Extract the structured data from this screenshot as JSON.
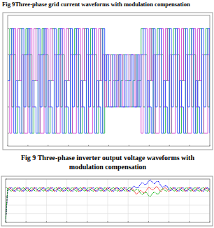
{
  "captions": [
    "Fig 9Three-phase grid current waveforms with modulation compensation",
    "Fig 9 Three-phase inverter output voltage waveforms with modulation compensation"
  ],
  "chart_data": [
    {
      "type": "step",
      "x": [
        0,
        0.01,
        0.02,
        0.03,
        0.04,
        0.05,
        0.06,
        0.07,
        0.08,
        0.09,
        0.1,
        0.11,
        0.12,
        0.13,
        0.14,
        0.15,
        0.16,
        0.17,
        0.18,
        0.19,
        0.2,
        0.21,
        0.22,
        0.23,
        0.24,
        0.25,
        0.26,
        0.27,
        0.28,
        0.29,
        0.3,
        0.31,
        0.32,
        0.33,
        0.34,
        0.35,
        0.36,
        0.37,
        0.38,
        0.39,
        0.4,
        0.41,
        0.42,
        0.43,
        0.44,
        0.45,
        0.46,
        0.47,
        0.48,
        0.49,
        0.5,
        0.51,
        0.52,
        0.53,
        0.54,
        0.55,
        0.56,
        0.57,
        0.58,
        0.59,
        0.6,
        0.61,
        0.62,
        0.63,
        0.64,
        0.65,
        0.66,
        0.67,
        0.68,
        0.69,
        0.7,
        0.71,
        0.72,
        0.73,
        0.74,
        0.75,
        0.76,
        0.77,
        0.78,
        0.79,
        0.8,
        0.81,
        0.82,
        0.83,
        0.84,
        0.85,
        0.86,
        0.87,
        0.88,
        0.89,
        0.9,
        0.91,
        0.92,
        0.93,
        0.94,
        0.95,
        0.96,
        0.97,
        0.98,
        0.99,
        1
      ],
      "series": [
        {
          "color": "#22b14c",
          "values": [
            0,
            2,
            -1,
            1,
            -2,
            0,
            2,
            -2,
            1,
            2,
            -1,
            1,
            -2,
            0,
            2,
            -2,
            1,
            2,
            -1,
            1,
            -2,
            0,
            2,
            -2,
            1,
            2,
            -1,
            1,
            -2,
            0,
            2,
            -2,
            1,
            2,
            -1,
            1,
            -2,
            0,
            2,
            -2,
            1,
            2,
            -1,
            1,
            -2,
            0,
            2,
            -2,
            1,
            -1,
            0,
            1,
            -1,
            0,
            1,
            -1,
            0,
            1,
            -1,
            0,
            1,
            -1,
            0,
            1,
            -1,
            0,
            2,
            -1,
            1,
            -2,
            0,
            2,
            -2,
            1,
            2,
            -1,
            1,
            -2,
            0,
            2,
            -2,
            1,
            2,
            -1,
            1,
            -2,
            0,
            2,
            -2,
            1,
            2,
            -1,
            1,
            -2,
            0,
            2,
            -2,
            1,
            2,
            -1,
            1
          ]
        },
        {
          "color": "#d040d0",
          "values": [
            0,
            -2,
            1,
            2,
            -1,
            2,
            0,
            1,
            -2,
            -2,
            1,
            2,
            -1,
            2,
            0,
            1,
            -2,
            -2,
            1,
            2,
            -1,
            2,
            0,
            1,
            -2,
            -2,
            1,
            2,
            -1,
            2,
            0,
            1,
            -2,
            -2,
            1,
            2,
            -1,
            2,
            0,
            1,
            -2,
            -2,
            1,
            2,
            -1,
            2,
            0,
            1,
            -1,
            1,
            1,
            -1,
            0,
            1,
            -1,
            1,
            1,
            -1,
            0,
            1,
            -1,
            1,
            1,
            -1,
            0,
            1,
            -2,
            1,
            2,
            -1,
            2,
            0,
            1,
            -2,
            -2,
            1,
            2,
            -1,
            2,
            0,
            1,
            -2,
            -2,
            1,
            2,
            -1,
            2,
            0,
            1,
            -2,
            -2,
            1,
            2,
            -1,
            2,
            0,
            1,
            -2,
            -2,
            1,
            2
          ]
        },
        {
          "color": "#3050ff",
          "values": [
            0,
            1,
            2,
            -2,
            0,
            -1,
            -2,
            2,
            -1,
            1,
            2,
            -2,
            0,
            -1,
            -2,
            2,
            -1,
            1,
            2,
            -2,
            0,
            -1,
            -2,
            2,
            -1,
            1,
            2,
            -2,
            0,
            -1,
            -2,
            2,
            -1,
            1,
            2,
            -2,
            0,
            -1,
            -2,
            2,
            -1,
            1,
            2,
            -2,
            0,
            -1,
            -2,
            2,
            0,
            1,
            -1,
            -1,
            1,
            -1,
            0,
            1,
            -1,
            -1,
            1,
            -1,
            0,
            1,
            -1,
            -1,
            1,
            -1,
            1,
            2,
            -2,
            0,
            -1,
            -2,
            2,
            -1,
            1,
            2,
            -2,
            0,
            -1,
            -2,
            2,
            -1,
            1,
            2,
            -2,
            0,
            -1,
            -2,
            2,
            -1,
            1,
            2,
            -2,
            0,
            -1,
            -2,
            2,
            -1,
            1,
            2,
            -2
          ]
        }
      ],
      "xlim": [
        0,
        1
      ],
      "xticks": [
        0,
        0.1,
        0.2,
        0.3,
        0.4,
        0.5,
        0.6,
        0.7,
        0.8,
        0.9,
        1
      ],
      "ylim": [
        -2.5,
        2.5
      ],
      "yticks": [
        -2,
        -1,
        0,
        1,
        2
      ],
      "grid": false,
      "tick_labels": false
    },
    {
      "type": "line",
      "x": [
        0,
        0.01,
        0.02,
        0.03,
        0.04,
        0.05,
        0.06,
        0.07,
        0.08,
        0.09,
        0.1,
        0.11,
        0.12,
        0.13,
        0.14,
        0.15,
        0.16,
        0.17,
        0.18,
        0.19,
        0.2,
        0.21,
        0.22,
        0.23,
        0.24,
        0.25,
        0.26,
        0.27,
        0.28,
        0.29,
        0.3,
        0.31,
        0.32,
        0.33,
        0.34,
        0.35,
        0.36,
        0.37,
        0.38,
        0.39,
        0.4,
        0.41,
        0.42,
        0.43,
        0.44,
        0.45,
        0.46,
        0.47,
        0.48,
        0.49,
        0.5,
        0.51,
        0.52,
        0.53,
        0.54,
        0.55,
        0.56,
        0.57,
        0.58,
        0.59,
        0.6,
        0.61,
        0.62,
        0.63,
        0.64,
        0.65,
        0.66,
        0.67,
        0.68,
        0.69,
        0.7,
        0.71,
        0.72,
        0.73,
        0.74,
        0.75,
        0.76,
        0.77,
        0.78,
        0.79,
        0.8,
        0.81,
        0.82,
        0.83,
        0.84,
        0.85,
        0.86,
        0.87,
        0.88,
        0.89,
        0.9,
        0.91,
        0.92,
        0.93,
        0.94,
        0.95,
        0.96,
        0.97,
        0.98,
        0.99,
        1
      ],
      "series": [
        {
          "color": "#ff0000",
          "values": [
            0,
            7.6,
            8.1,
            7.6,
            7.1,
            7.6,
            8.1,
            7.6,
            7.1,
            7.6,
            8.1,
            7.6,
            7.1,
            7.6,
            8.1,
            7.6,
            7.1,
            7.6,
            8.1,
            7.6,
            7.1,
            7.6,
            8.1,
            7.6,
            7.1,
            7.6,
            8.1,
            7.6,
            7.1,
            7.6,
            8.1,
            7.6,
            7.1,
            7.6,
            8.1,
            7.6,
            7.1,
            7.6,
            8.1,
            7.6,
            7.1,
            7.6,
            8.1,
            7.6,
            7.1,
            7.6,
            8.1,
            7.6,
            7.1,
            7.6,
            8.1,
            7.6,
            7.1,
            7.6,
            8.1,
            7.6,
            7.1,
            7.6,
            8.1,
            7.6,
            7.1,
            7.6,
            7.9,
            7.2,
            6.5,
            6.9,
            7.4,
            7.0,
            6.7,
            7.4,
            8.1,
            7.8,
            7.4,
            7.9,
            8.3,
            7.7,
            7.1,
            7.6,
            8.1,
            7.6,
            7.1,
            7.6,
            8.1,
            7.6,
            7.1,
            7.6,
            8.1,
            7.6,
            7.1,
            7.6,
            8.1,
            7.6,
            7.1,
            7.6,
            8.1,
            7.6,
            7.1,
            7.6,
            8.1,
            7.6,
            7.1
          ]
        },
        {
          "color": "#0000ff",
          "values": [
            0,
            7.2,
            7.85,
            8.0,
            7.35,
            7.2,
            7.85,
            8.0,
            7.35,
            7.2,
            7.85,
            8.0,
            7.35,
            7.2,
            7.85,
            8.0,
            7.35,
            7.2,
            7.85,
            8.0,
            7.35,
            7.2,
            7.85,
            8.0,
            7.35,
            7.2,
            7.85,
            8.0,
            7.35,
            7.2,
            7.85,
            8.0,
            7.35,
            7.2,
            7.85,
            8.0,
            7.35,
            7.2,
            7.85,
            8.0,
            7.35,
            7.2,
            7.85,
            8.0,
            7.35,
            7.2,
            7.85,
            8.0,
            7.35,
            7.2,
            7.85,
            8.0,
            7.35,
            7.2,
            7.85,
            8.0,
            7.35,
            7.2,
            7.85,
            8.0,
            7.35,
            7.2,
            8.05,
            8.4,
            7.95,
            8.0,
            8.85,
            9.2,
            8.75,
            8.8,
            9.55,
            9.8,
            9.15,
            8.9,
            9.45,
            9.4,
            8.45,
            8.1,
            8.45,
            8.4,
            7.55,
            7.3,
            7.85,
            8.0,
            7.35,
            7.2,
            7.85,
            8.0,
            7.35,
            7.2,
            7.85,
            8.0,
            7.35,
            7.2,
            7.85,
            8.0,
            7.35,
            7.2,
            7.85,
            8.0,
            7.35
          ]
        },
        {
          "color": "#00b000",
          "values": [
            0,
            8.0,
            7.35,
            7.2,
            7.85,
            8.0,
            7.35,
            7.2,
            7.85,
            8.0,
            7.35,
            7.2,
            7.85,
            8.0,
            7.35,
            7.2,
            7.85,
            8.0,
            7.35,
            7.2,
            7.85,
            8.0,
            7.35,
            7.2,
            7.85,
            8.0,
            7.35,
            7.2,
            7.85,
            8.0,
            7.35,
            7.2,
            7.85,
            8.0,
            7.35,
            7.2,
            7.85,
            8.0,
            7.35,
            7.2,
            7.85,
            8.0,
            7.35,
            7.2,
            7.85,
            8.0,
            7.35,
            7.2,
            7.85,
            8.0,
            7.35,
            7.2,
            7.85,
            8.0,
            7.35,
            7.2,
            7.85,
            8.0,
            7.35,
            7.2,
            7.85,
            8.0,
            7.35,
            7.2,
            7.65,
            7.6,
            6.75,
            6.4,
            6.85,
            6.9,
            6.15,
            6.0,
            6.75,
            7.0,
            6.55,
            6.6,
            7.45,
            7.8,
            7.35,
            7.2,
            7.85,
            8.0,
            7.35,
            7.2,
            7.85,
            8.0,
            7.35,
            7.2,
            7.85,
            8.0,
            7.35,
            7.2,
            7.85,
            8.0,
            7.35,
            7.2,
            7.85,
            8.0,
            7.35,
            7.2,
            7.85
          ]
        }
      ],
      "xlim": [
        0,
        1
      ],
      "xticks": [
        0,
        0.1,
        0.2,
        0.3,
        0.4,
        0.5,
        0.6,
        0.7,
        0.8,
        0.9,
        1
      ],
      "ylim": [
        0,
        10
      ],
      "yticks": [
        0,
        2,
        4,
        6,
        8,
        10
      ],
      "grid": true,
      "tick_labels": false,
      "line_style": "dotted"
    }
  ]
}
